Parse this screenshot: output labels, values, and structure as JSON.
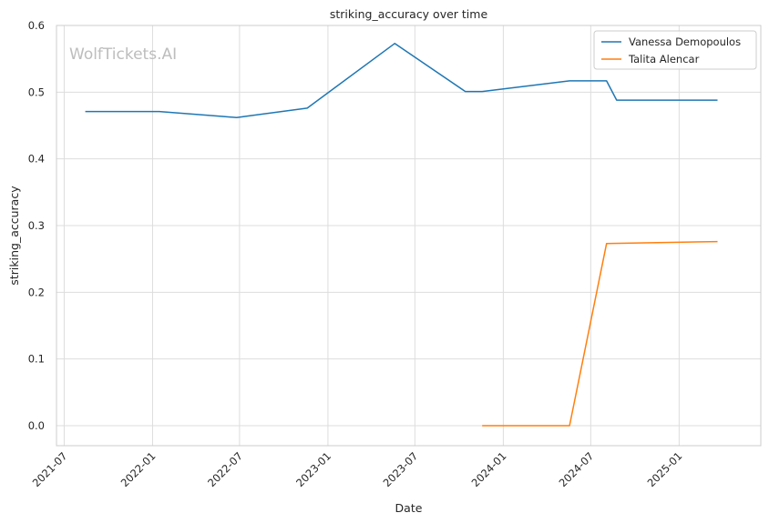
{
  "chart_data": {
    "type": "line",
    "title": "striking_accuracy over time",
    "xlabel": "Date",
    "ylabel": "striking_accuracy",
    "watermark": "WolfTickets.AI",
    "x_axis_kind": "date",
    "xlim": [
      "2021-06-15",
      "2025-06-20"
    ],
    "ylim": [
      -0.03,
      0.6
    ],
    "x_ticks": [
      "2021-07-01",
      "2022-01-01",
      "2022-07-01",
      "2023-01-01",
      "2023-07-01",
      "2024-01-01",
      "2024-07-01",
      "2025-01-01"
    ],
    "x_tick_labels": [
      "2021-07",
      "2022-01",
      "2022-07",
      "2023-01",
      "2023-07",
      "2024-01",
      "2024-07",
      "2025-01"
    ],
    "y_ticks": [
      0.0,
      0.1,
      0.2,
      0.3,
      0.4,
      0.5,
      0.6
    ],
    "y_tick_labels": [
      "0.0",
      "0.1",
      "0.2",
      "0.3",
      "0.4",
      "0.5",
      "0.6"
    ],
    "grid": true,
    "legend_position": "top-right",
    "series": [
      {
        "name": "Vanessa Demopoulos",
        "color": "#1f77b4",
        "points": [
          [
            "2021-08-14",
            0.471
          ],
          [
            "2022-01-15",
            0.471
          ],
          [
            "2022-06-25",
            0.462
          ],
          [
            "2022-11-19",
            0.476
          ],
          [
            "2023-05-20",
            0.573
          ],
          [
            "2023-10-14",
            0.501
          ],
          [
            "2023-11-18",
            0.501
          ],
          [
            "2024-05-18",
            0.517
          ],
          [
            "2024-08-03",
            0.517
          ],
          [
            "2024-08-24",
            0.488
          ],
          [
            "2025-03-22",
            0.488
          ]
        ]
      },
      {
        "name": "Talita Alencar",
        "color": "#ff7f0e",
        "points": [
          [
            "2023-11-18",
            0.0
          ],
          [
            "2024-05-18",
            0.0
          ],
          [
            "2024-08-03",
            0.273
          ],
          [
            "2025-03-22",
            0.276
          ]
        ]
      }
    ]
  }
}
